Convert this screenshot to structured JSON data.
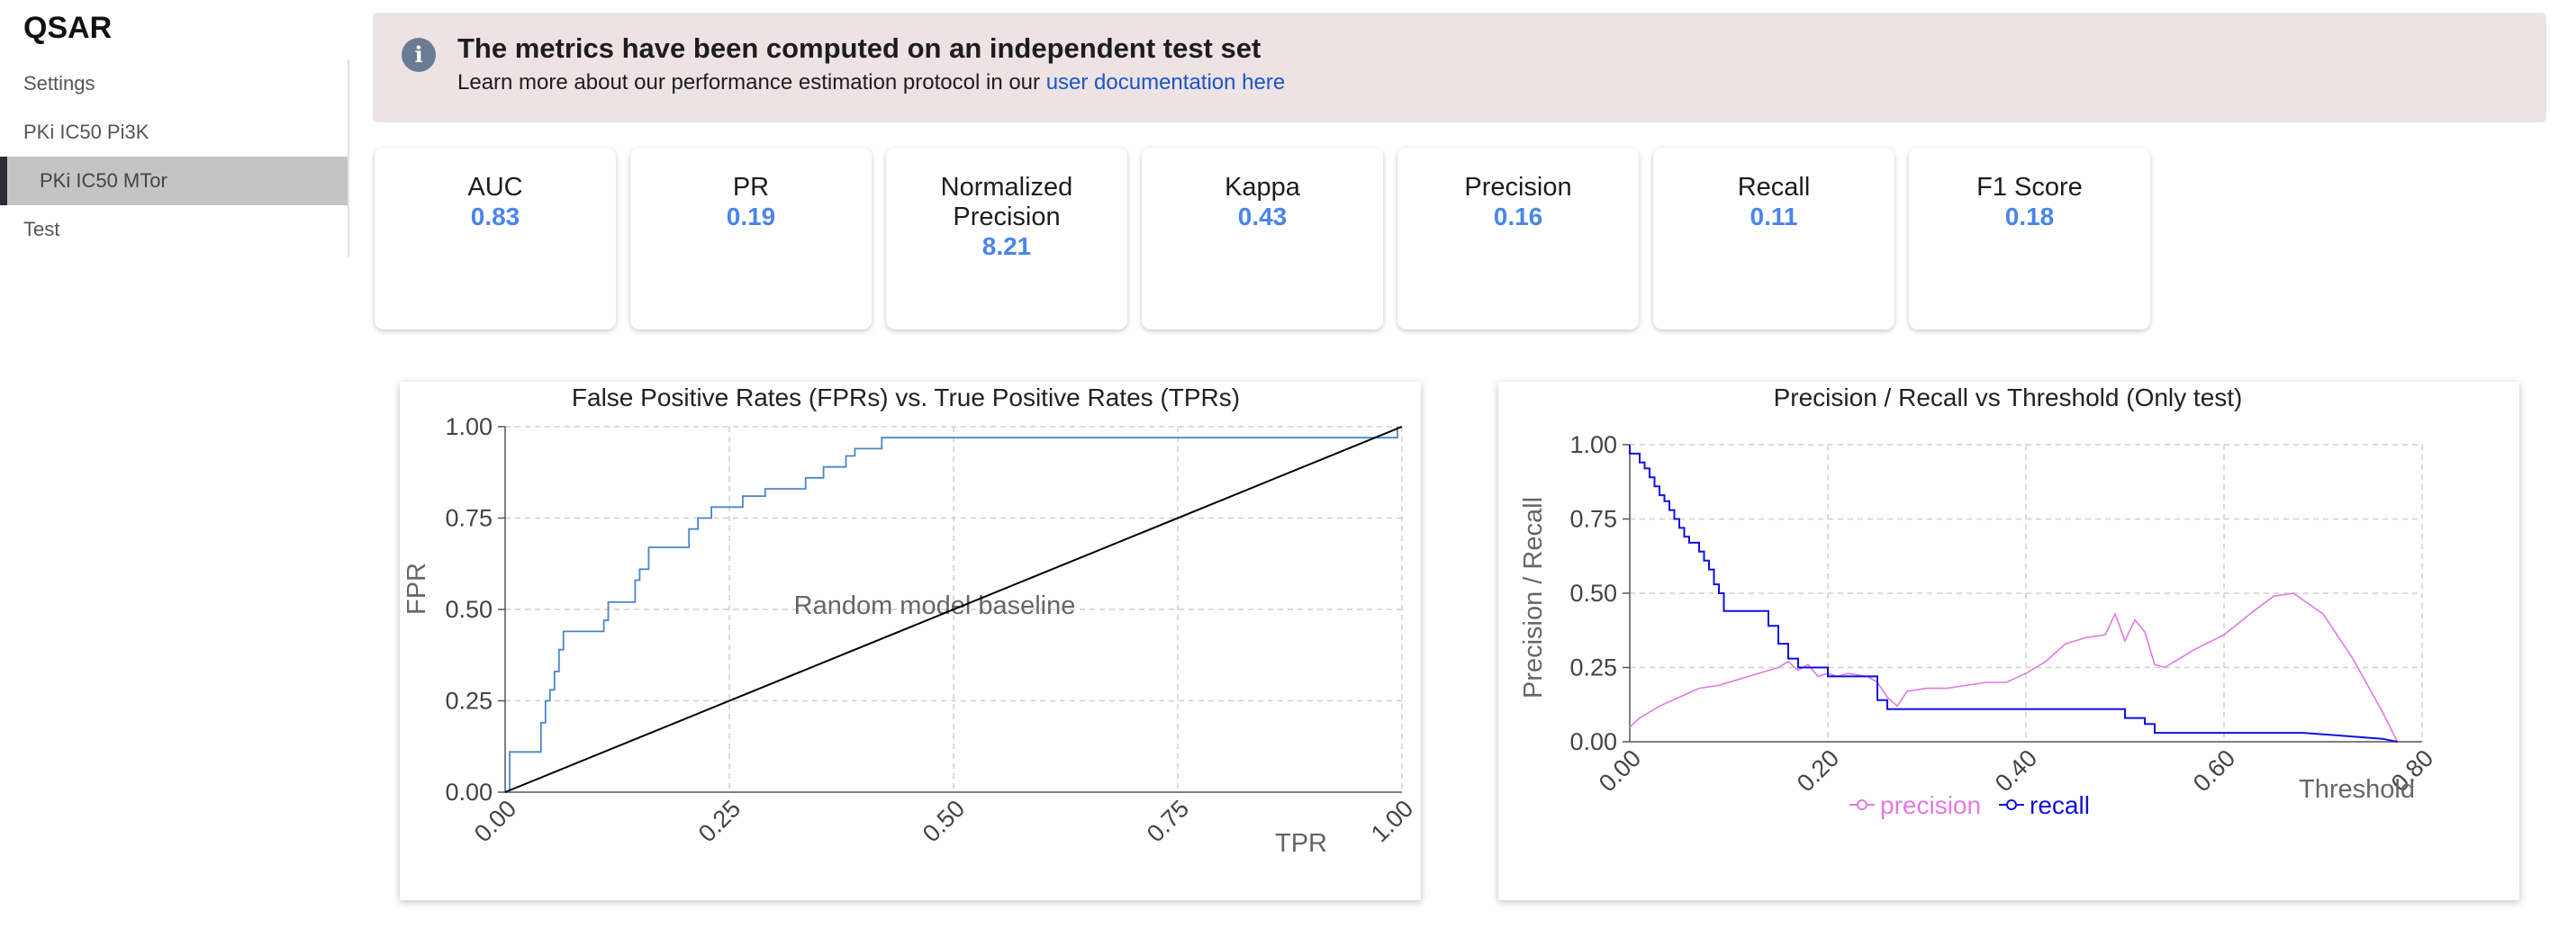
{
  "app": {
    "title": "QSAR"
  },
  "sidebar": {
    "items": [
      {
        "label": "Settings",
        "active": false
      },
      {
        "label": "PKi IC50 Pi3K",
        "active": false
      },
      {
        "label": "PKi IC50 MTor",
        "active": true
      },
      {
        "label": "Test",
        "active": false
      }
    ]
  },
  "banner": {
    "icon": "info-icon",
    "title": "The metrics have been computed on an independent test set",
    "text": "Learn more about our performance estimation protocol in our",
    "link_text": "user documentation here"
  },
  "metrics": [
    {
      "label": "AUC",
      "value": "0.83"
    },
    {
      "label": "PR",
      "value": "0.19"
    },
    {
      "label": "Normalized Precision",
      "value": "8.21"
    },
    {
      "label": "Kappa",
      "value": "0.43"
    },
    {
      "label": "Precision",
      "value": "0.16"
    },
    {
      "label": "Recall",
      "value": "0.11"
    },
    {
      "label": "F1 Score",
      "value": "0.18"
    }
  ],
  "colors": {
    "accent": "#4a86e8",
    "banner_bg": "#ede2e4",
    "roc_line": "#4a86c8",
    "precision": "#e07ae0",
    "recall": "#1010e0"
  },
  "chart_data": [
    {
      "type": "line",
      "title": "False Positive Rates (FPRs) vs. True Positive Rates (TPRs)",
      "xlabel": "TPR",
      "ylabel": "FPR",
      "xlim": [
        0,
        1
      ],
      "ylim": [
        0,
        1
      ],
      "xticks": [
        "0.00",
        "0.25",
        "0.50",
        "0.75",
        "1.00"
      ],
      "yticks": [
        "0.00",
        "0.25",
        "0.50",
        "0.75",
        "1.00"
      ],
      "grid": true,
      "annotation": "Random model baseline",
      "series": [
        {
          "step": true,
          "x": [
            0,
            0.005,
            0.005,
            0.01,
            0.01,
            0.04,
            0.04,
            0.045,
            0.045,
            0.05,
            0.05,
            0.055,
            0.055,
            0.06,
            0.06,
            0.065,
            0.065,
            0.11,
            0.11,
            0.115,
            0.115,
            0.145,
            0.145,
            0.15,
            0.15,
            0.16,
            0.16,
            0.17,
            0.17,
            0.205,
            0.205,
            0.215,
            0.215,
            0.23,
            0.23,
            0.265,
            0.265,
            0.29,
            0.29,
            0.335,
            0.335,
            0.355,
            0.355,
            0.38,
            0.38,
            0.39,
            0.39,
            0.42,
            0.42,
            0.995,
            0.995
          ],
          "y": [
            0,
            0,
            0.11,
            0.11,
            0.11,
            0.11,
            0.19,
            0.19,
            0.25,
            0.25,
            0.28,
            0.28,
            0.33,
            0.33,
            0.39,
            0.39,
            0.44,
            0.44,
            0.47,
            0.47,
            0.52,
            0.52,
            0.58,
            0.58,
            0.61,
            0.61,
            0.67,
            0.67,
            0.67,
            0.67,
            0.72,
            0.72,
            0.75,
            0.75,
            0.78,
            0.78,
            0.81,
            0.81,
            0.83,
            0.83,
            0.86,
            0.86,
            0.89,
            0.89,
            0.92,
            0.92,
            0.94,
            0.94,
            0.97,
            0.97,
            1.0
          ]
        },
        {
          "name": "baseline",
          "x": [
            0,
            1
          ],
          "y": [
            0,
            1
          ]
        }
      ]
    },
    {
      "type": "line",
      "title": "Precision / Recall vs Threshold (Only test)",
      "xlabel": "Threshold",
      "ylabel": "Precision / Recall",
      "xlim": [
        0,
        0.8
      ],
      "ylim": [
        0,
        1
      ],
      "xticks": [
        "0.00",
        "0.20",
        "0.40",
        "0.60",
        "0.80"
      ],
      "yticks": [
        "0.00",
        "0.25",
        "0.50",
        "0.75",
        "1.00"
      ],
      "grid": true,
      "legend": "bottom",
      "series": [
        {
          "name": "precision",
          "x": [
            0.0,
            0.01,
            0.03,
            0.05,
            0.07,
            0.09,
            0.11,
            0.13,
            0.15,
            0.16,
            0.17,
            0.18,
            0.19,
            0.2,
            0.21,
            0.22,
            0.24,
            0.25,
            0.26,
            0.27,
            0.28,
            0.3,
            0.32,
            0.34,
            0.36,
            0.38,
            0.4,
            0.42,
            0.44,
            0.46,
            0.48,
            0.49,
            0.5,
            0.51,
            0.52,
            0.53,
            0.54,
            0.55,
            0.57,
            0.6,
            0.63,
            0.65,
            0.67,
            0.7,
            0.73,
            0.76,
            0.775
          ],
          "y": [
            0.05,
            0.08,
            0.12,
            0.15,
            0.18,
            0.19,
            0.21,
            0.23,
            0.25,
            0.27,
            0.24,
            0.26,
            0.22,
            0.23,
            0.22,
            0.23,
            0.22,
            0.2,
            0.15,
            0.12,
            0.17,
            0.18,
            0.18,
            0.19,
            0.2,
            0.2,
            0.23,
            0.27,
            0.33,
            0.35,
            0.36,
            0.43,
            0.34,
            0.41,
            0.37,
            0.26,
            0.25,
            0.27,
            0.31,
            0.36,
            0.44,
            0.49,
            0.5,
            0.43,
            0.28,
            0.1,
            0.0
          ]
        },
        {
          "name": "recall",
          "step": true,
          "x": [
            0.0,
            0.0,
            0.01,
            0.01,
            0.015,
            0.015,
            0.02,
            0.02,
            0.025,
            0.025,
            0.03,
            0.03,
            0.035,
            0.035,
            0.04,
            0.04,
            0.045,
            0.045,
            0.05,
            0.05,
            0.055,
            0.055,
            0.06,
            0.06,
            0.07,
            0.07,
            0.075,
            0.075,
            0.08,
            0.08,
            0.085,
            0.085,
            0.09,
            0.09,
            0.095,
            0.095,
            0.14,
            0.14,
            0.15,
            0.15,
            0.16,
            0.16,
            0.17,
            0.17,
            0.2,
            0.2,
            0.22,
            0.22,
            0.25,
            0.25,
            0.26,
            0.26,
            0.27,
            0.27,
            0.5,
            0.5,
            0.52,
            0.52,
            0.53,
            0.53,
            0.68,
            0.72,
            0.76,
            0.775
          ],
          "y": [
            1.0,
            0.97,
            0.97,
            0.94,
            0.94,
            0.92,
            0.92,
            0.89,
            0.89,
            0.86,
            0.86,
            0.83,
            0.83,
            0.81,
            0.81,
            0.78,
            0.78,
            0.75,
            0.75,
            0.72,
            0.72,
            0.69,
            0.69,
            0.67,
            0.67,
            0.64,
            0.64,
            0.61,
            0.61,
            0.58,
            0.58,
            0.53,
            0.53,
            0.5,
            0.5,
            0.44,
            0.44,
            0.39,
            0.39,
            0.33,
            0.33,
            0.28,
            0.28,
            0.25,
            0.25,
            0.22,
            0.22,
            0.22,
            0.22,
            0.14,
            0.14,
            0.11,
            0.11,
            0.11,
            0.11,
            0.08,
            0.08,
            0.06,
            0.06,
            0.03,
            0.03,
            0.02,
            0.01,
            0.0
          ]
        }
      ]
    }
  ]
}
